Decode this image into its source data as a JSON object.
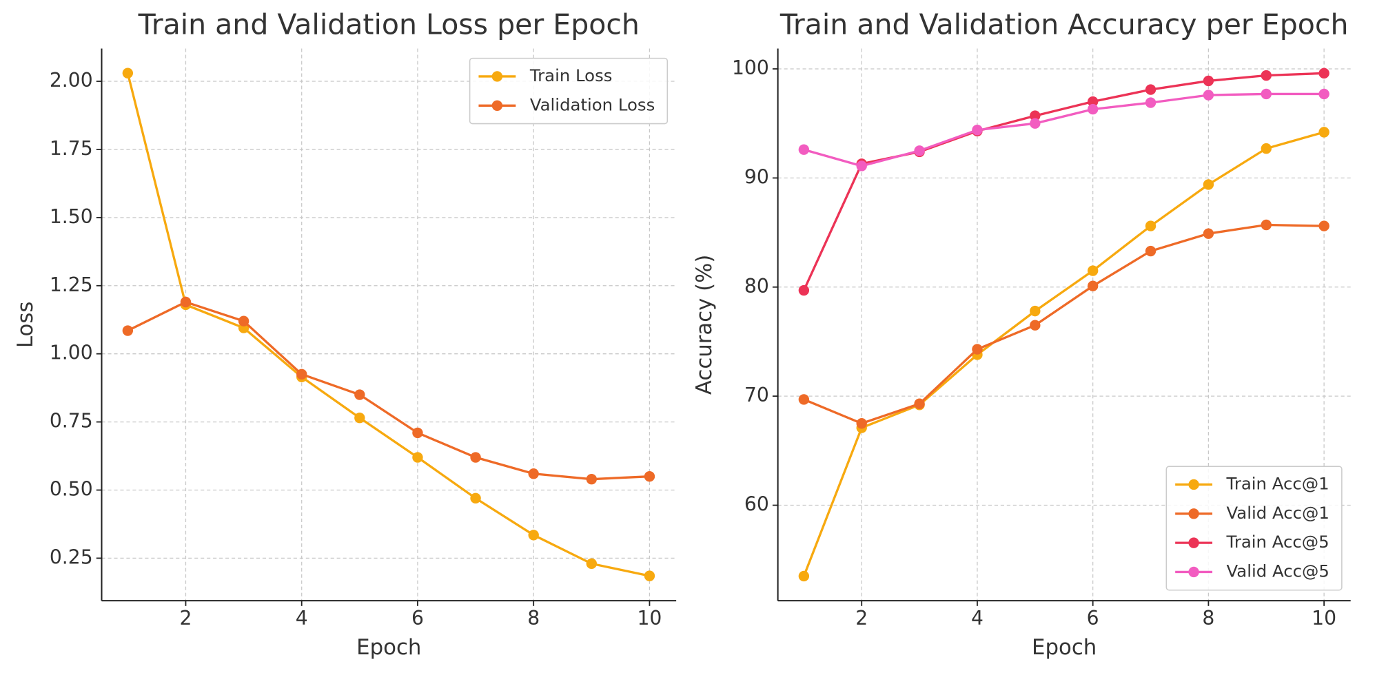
{
  "chart_data": [
    {
      "type": "line",
      "title": "Train and Validation Loss per Epoch",
      "x_label": "Epoch",
      "y_label": "Loss",
      "x": [
        1,
        2,
        3,
        4,
        5,
        6,
        7,
        8,
        9,
        10
      ],
      "series": [
        {
          "name": "Train Loss",
          "color": "#f7a90f",
          "values": [
            2.03,
            1.18,
            1.095,
            0.915,
            0.765,
            0.62,
            0.47,
            0.335,
            0.23,
            0.185
          ]
        },
        {
          "name": "Validation Loss",
          "color": "#ee6a27",
          "values": [
            1.085,
            1.19,
            1.12,
            0.925,
            0.85,
            0.71,
            0.62,
            0.56,
            0.54,
            0.55
          ]
        }
      ],
      "xlim": [
        0.55,
        10.46
      ],
      "xticks": [
        2,
        4,
        6,
        8,
        10
      ],
      "ylim": [
        0.094,
        2.12
      ],
      "yticks": [
        {
          "value": 0.25,
          "label": "0.25"
        },
        {
          "value": 0.5,
          "label": "0.50"
        },
        {
          "value": 0.75,
          "label": "0.75"
        },
        {
          "value": 1.0,
          "label": "1.00"
        },
        {
          "value": 1.25,
          "label": "1.25"
        },
        {
          "value": 1.5,
          "label": "1.50"
        },
        {
          "value": 1.75,
          "label": "1.75"
        },
        {
          "value": 2.0,
          "label": "2.00"
        }
      ],
      "grid": true,
      "legend": "upper-right"
    },
    {
      "type": "line",
      "title": "Train and Validation Accuracy per Epoch",
      "x_label": "Epoch",
      "y_label": "Accuracy (%)",
      "x": [
        1,
        2,
        3,
        4,
        5,
        6,
        7,
        8,
        9,
        10
      ],
      "series": [
        {
          "name": "Train Acc@1",
          "color": "#f7a90f",
          "values": [
            53.5,
            67.1,
            69.2,
            73.8,
            77.8,
            81.5,
            85.6,
            89.4,
            92.7,
            94.2
          ]
        },
        {
          "name": "Valid Acc@1",
          "color": "#ee6a27",
          "values": [
            69.7,
            67.5,
            69.3,
            74.3,
            76.5,
            80.1,
            83.3,
            84.9,
            85.7,
            85.6
          ]
        },
        {
          "name": "Train Acc@5",
          "color": "#ec3356",
          "values": [
            79.7,
            91.3,
            92.4,
            94.3,
            95.7,
            97.0,
            98.1,
            98.9,
            99.4,
            99.6
          ]
        },
        {
          "name": "Valid Acc@5",
          "color": "#f25cc0",
          "values": [
            92.6,
            91.1,
            92.5,
            94.4,
            95.0,
            96.3,
            96.9,
            97.6,
            97.7,
            97.7
          ]
        }
      ],
      "xlim": [
        0.55,
        10.46
      ],
      "xticks": [
        2,
        4,
        6,
        8,
        10
      ],
      "ylim": [
        51.25,
        101.86
      ],
      "yticks": [
        60,
        70,
        80,
        90,
        100
      ],
      "grid": true,
      "legend": "lower-right"
    }
  ]
}
